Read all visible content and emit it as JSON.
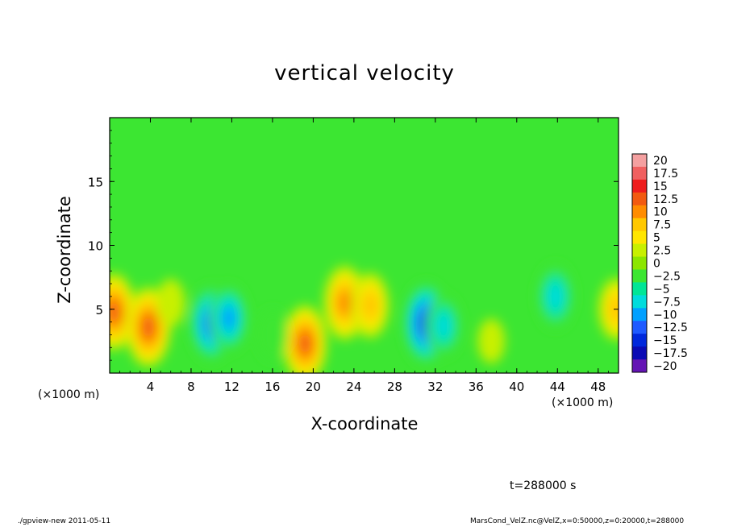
{
  "chart_data": {
    "type": "heatmap",
    "title": "vertical velocity",
    "xlabel": "X-coordinate",
    "ylabel": "Z-coordinate",
    "x_unit": "(×1000 m)",
    "x_ticks": [
      "4",
      "8",
      "12",
      "16",
      "20",
      "24",
      "28",
      "32",
      "36",
      "40",
      "44",
      "48"
    ],
    "y_ticks": [
      "5",
      "10",
      "15"
    ],
    "xlim": [
      0,
      50
    ],
    "ylim": [
      0,
      20
    ],
    "colorbar": {
      "labels": [
        "20",
        "17.5",
        "15",
        "12.5",
        "10",
        "7.5",
        "5",
        "2.5",
        "0",
        "−2.5",
        "−5",
        "−7.5",
        "−10",
        "−12.5",
        "−15",
        "−17.5",
        "−20"
      ],
      "colors": [
        "#f4a0a0",
        "#f06060",
        "#ee1c1c",
        "#f25a10",
        "#ff8c00",
        "#ffc800",
        "#ffe600",
        "#c8f000",
        "#8ce600",
        "#3ce632",
        "#00e696",
        "#00dcdc",
        "#00a0ff",
        "#1e5aff",
        "#0028dc",
        "#0a0ab4",
        "#6414b4"
      ]
    },
    "features": [
      {
        "x": 0.4,
        "z": 4.8,
        "value": 12
      },
      {
        "x": 3.8,
        "z": 3.6,
        "value": 13
      },
      {
        "x": 10.0,
        "z": 3.9,
        "value": -12
      },
      {
        "x": 11.7,
        "z": 4.3,
        "value": -9
      },
      {
        "x": 19.2,
        "z": 2.3,
        "value": 12
      },
      {
        "x": 23.1,
        "z": 5.5,
        "value": 11
      },
      {
        "x": 25.6,
        "z": 5.3,
        "value": 8
      },
      {
        "x": 31.1,
        "z": 3.9,
        "value": -14
      },
      {
        "x": 32.8,
        "z": 3.7,
        "value": -7
      },
      {
        "x": 43.8,
        "z": 6.0,
        "value": -8
      },
      {
        "x": 49.8,
        "z": 5.0,
        "value": 7
      },
      {
        "x": 6.0,
        "z": 5.5,
        "value": 2
      },
      {
        "x": 16.0,
        "z": 3.0,
        "value": -3
      },
      {
        "x": 37.5,
        "z": 2.5,
        "value": 1
      }
    ]
  },
  "annotations": {
    "time": "t=288000 s",
    "footer_left": "./gpview-new  2011-05-11",
    "footer_right": "MarsCond_VelZ.nc@VelZ,x=0:50000,z=0:20000,t=288000"
  }
}
